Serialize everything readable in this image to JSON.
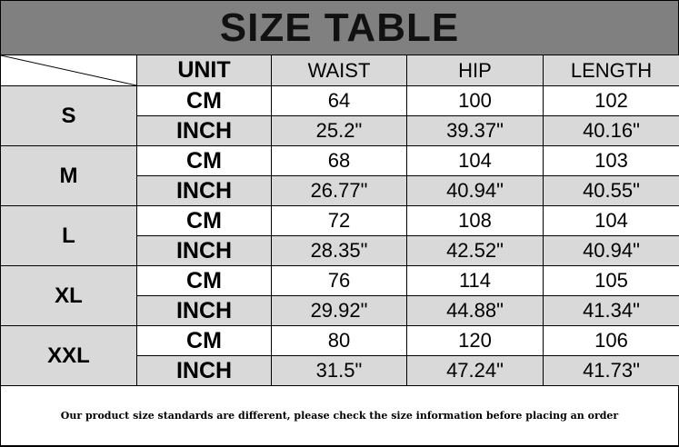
{
  "title": "SIZE TABLE",
  "headers": [
    "UNIT",
    "WAIST",
    "HIP",
    "LENGTH"
  ],
  "sizes": [
    {
      "size": "S",
      "rows": [
        {
          "unit": "CM",
          "waist": "64",
          "hip": "100",
          "length": "102"
        },
        {
          "unit": "INCH",
          "waist": "25.2\"",
          "hip": "39.37\"",
          "length": "40.16\""
        }
      ]
    },
    {
      "size": "M",
      "rows": [
        {
          "unit": "CM",
          "waist": "68",
          "hip": "104",
          "length": "103"
        },
        {
          "unit": "INCH",
          "waist": "26.77\"",
          "hip": "40.94\"",
          "length": "40.55\""
        }
      ]
    },
    {
      "size": "L",
      "rows": [
        {
          "unit": "CM",
          "waist": "72",
          "hip": "108",
          "length": "104"
        },
        {
          "unit": "INCH",
          "waist": "28.35\"",
          "hip": "42.52\"",
          "length": "40.94\""
        }
      ]
    },
    {
      "size": "XL",
      "rows": [
        {
          "unit": "CM",
          "waist": "76",
          "hip": "114",
          "length": "105"
        },
        {
          "unit": "INCH",
          "waist": "29.92\"",
          "hip": "44.88\"",
          "length": "41.34\""
        }
      ]
    },
    {
      "size": "XXL",
      "rows": [
        {
          "unit": "CM",
          "waist": "80",
          "hip": "120",
          "length": "106"
        },
        {
          "unit": "INCH",
          "waist": "31.5\"",
          "hip": "47.24\"",
          "length": "41.73\""
        }
      ]
    }
  ],
  "footer": "Our product size standards are different, please check the size information before placing an order",
  "colors": {
    "title_bg": "#808080",
    "shaded_cell": "#d9d9d9",
    "white_cell": "#ffffff"
  }
}
